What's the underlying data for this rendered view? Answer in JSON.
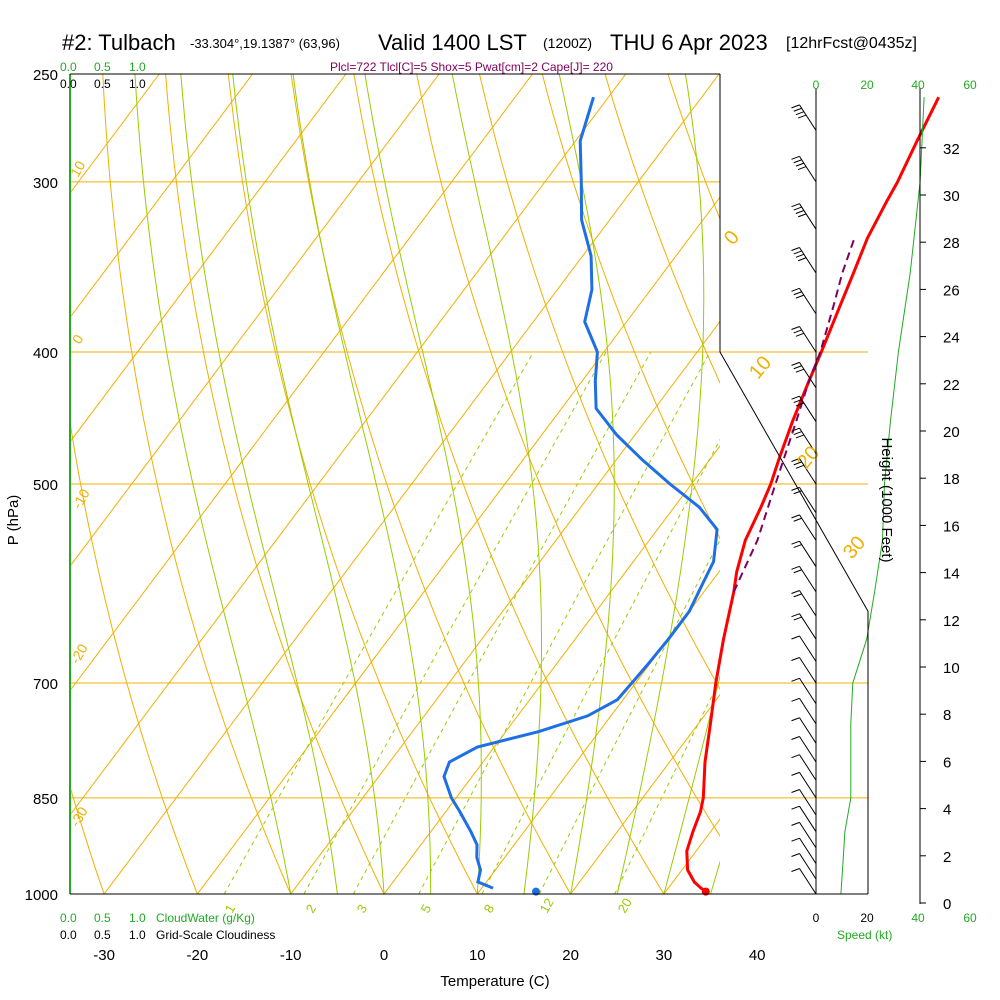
{
  "header": {
    "station": "#2: Tulbach",
    "coords": "-33.304°,19.1387° (63,96)",
    "valid_label": "Valid 1400 LST",
    "valid_z": "(1200Z)",
    "date": "THU 6 Apr 2023",
    "forecast": "[12hrFcst@0435z]",
    "indices": "Plcl=722 Tlcl[C]=5 Shox=5 Pwat[cm]=2 Cape[J]= 220"
  },
  "colors": {
    "isotherm": "#f0b000",
    "dry_adiabat": "#f0b000",
    "moist_adiabat": "#99cc00",
    "mixing_ratio": "#99cc00",
    "temperature": "#ff0000",
    "dewpoint": "#1e6fe6",
    "parcel": "#800060",
    "wind_profile": "#22aa22",
    "cloud_axis": "#22aa22"
  },
  "cloud_scales": {
    "top_green": [
      "0.0",
      "0.5",
      "1.0"
    ],
    "top_black": [
      "0.0",
      "0.5",
      "1.0"
    ],
    "bottom_green": [
      "0.0",
      "0.5",
      "1.0"
    ],
    "bottom_black": [
      "0.0",
      "0.5",
      "1.0"
    ],
    "cloudwater_label": "CloudWater (g/Kg)",
    "cloudiness_label": "Grid-Scale Cloudiness"
  },
  "wind_panel": {
    "speed_ticks_black": [
      "0",
      "20",
      "40"
    ],
    "speed_ticks_green_top": [
      "0",
      "20",
      "40",
      "60"
    ],
    "speed_ticks_green_bottom": [
      "0",
      "20",
      "40",
      "60"
    ],
    "speed_label": "Speed (kt)"
  },
  "dry_adiabat_labels": [
    "10",
    "0",
    "-10",
    "-20",
    "-30",
    "0",
    "10",
    "20",
    "30"
  ],
  "mixing_ratio_labels": [
    "1",
    "2",
    "3",
    "5",
    "8",
    "12",
    "20"
  ],
  "chart_data": {
    "type": "line",
    "subtype": "skew-T log-P",
    "xlabel": "Temperature (C)",
    "ylabel": "P (hPa)",
    "y2label": "Height (1000 Feet)",
    "x_ticks": [
      -30,
      -20,
      -10,
      0,
      10,
      20,
      30,
      40
    ],
    "p_ticks": [
      250,
      300,
      400,
      500,
      700,
      850,
      1000
    ],
    "height_ticks": [
      0,
      2,
      4,
      6,
      8,
      10,
      12,
      14,
      16,
      18,
      20,
      22,
      24,
      26,
      28,
      30,
      32
    ],
    "ylim_hPa": [
      1000,
      250
    ],
    "series": [
      {
        "key": "temperature",
        "points": [
          [
            996,
            34.3
          ],
          [
            990,
            33.5
          ],
          [
            980,
            32.3
          ],
          [
            960,
            30.6
          ],
          [
            930,
            29.0
          ],
          [
            900,
            28.1
          ],
          [
            870,
            27.3
          ],
          [
            850,
            26.5
          ],
          [
            800,
            23.8
          ],
          [
            750,
            21.3
          ],
          [
            700,
            18.6
          ],
          [
            650,
            15.9
          ],
          [
            600,
            13.2
          ],
          [
            580,
            11.9
          ],
          [
            550,
            10.3
          ],
          [
            520,
            9.3
          ],
          [
            500,
            8.5
          ],
          [
            480,
            7.4
          ],
          [
            450,
            5.8
          ],
          [
            420,
            4.3
          ],
          [
            400,
            3.3
          ],
          [
            370,
            1.6
          ],
          [
            350,
            0.4
          ],
          [
            330,
            -0.9
          ],
          [
            310,
            -1.8
          ],
          [
            300,
            -2.2
          ],
          [
            280,
            -3.4
          ],
          [
            260,
            -4.6
          ]
        ]
      },
      {
        "key": "dewpoint",
        "points": [
          [
            990,
            11.2
          ],
          [
            980,
            9.1
          ],
          [
            960,
            8.4
          ],
          [
            940,
            7.0
          ],
          [
            920,
            6.0
          ],
          [
            900,
            4.3
          ],
          [
            870,
            1.5
          ],
          [
            850,
            -0.5
          ],
          [
            820,
            -3.0
          ],
          [
            800,
            -3.6
          ],
          [
            780,
            -1.8
          ],
          [
            760,
            3.5
          ],
          [
            740,
            7.5
          ],
          [
            720,
            9.4
          ],
          [
            700,
            9.6
          ],
          [
            680,
            9.8
          ],
          [
            650,
            10.0
          ],
          [
            620,
            10.0
          ],
          [
            595,
            9.3
          ],
          [
            570,
            8.6
          ],
          [
            540,
            6.4
          ],
          [
            520,
            2.7
          ],
          [
            500,
            -2.3
          ],
          [
            480,
            -7.2
          ],
          [
            460,
            -12.0
          ],
          [
            440,
            -16.3
          ],
          [
            420,
            -18.6
          ],
          [
            400,
            -20.7
          ],
          [
            380,
            -24.5
          ],
          [
            360,
            -26.3
          ],
          [
            340,
            -29.1
          ],
          [
            320,
            -33.0
          ],
          [
            300,
            -36.1
          ],
          [
            280,
            -39.5
          ],
          [
            260,
            -41.6
          ]
        ]
      },
      {
        "key": "parcel",
        "dashed": true,
        "points": [
          [
            600,
            13.2
          ],
          [
            550,
            11.6
          ],
          [
            500,
            9.0
          ],
          [
            450,
            6.2
          ],
          [
            420,
            4.3
          ],
          [
            400,
            3.2
          ],
          [
            370,
            0.9
          ],
          [
            350,
            -0.8
          ],
          [
            330,
            -2.3
          ]
        ]
      }
    ],
    "surface_markers": [
      {
        "key": "temperature",
        "p": 996,
        "t": 34.3
      },
      {
        "key": "dewpoint",
        "p": 996,
        "t": 16.1
      }
    ],
    "wind_profile_kt": [
      [
        1000,
        3
      ],
      [
        950,
        4
      ],
      [
        900,
        5
      ],
      [
        850,
        8
      ],
      [
        800,
        8
      ],
      [
        750,
        8
      ],
      [
        700,
        9
      ],
      [
        650,
        16
      ],
      [
        600,
        20
      ],
      [
        550,
        24
      ],
      [
        500,
        25
      ],
      [
        450,
        28
      ],
      [
        400,
        32
      ],
      [
        350,
        38
      ],
      [
        300,
        43
      ],
      [
        260,
        45
      ]
    ]
  }
}
